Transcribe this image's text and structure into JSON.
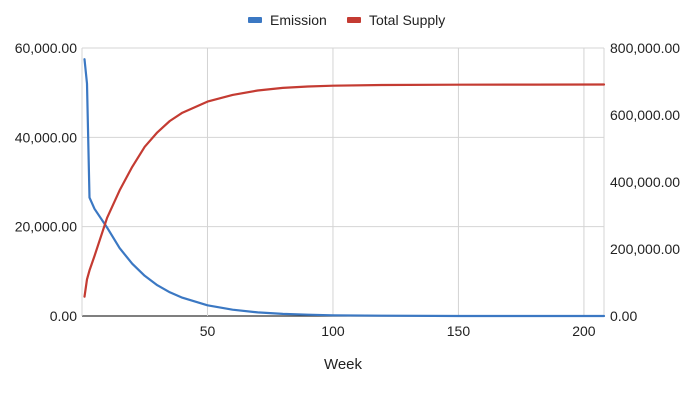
{
  "chart_data": {
    "type": "line",
    "title": "",
    "xlabel": "Week",
    "ylabel": "",
    "legend_position": "top-center",
    "x_range": [
      0,
      208
    ],
    "x_ticks": [
      50,
      100,
      150,
      200
    ],
    "x_tick_labels": [
      "50",
      "100",
      "150",
      "200"
    ],
    "y_left_range": [
      0,
      60000
    ],
    "y_left_ticks": [
      0,
      20000,
      40000,
      60000
    ],
    "y_left_tick_labels": [
      "0.00",
      "20,000.00",
      "40,000.00",
      "60,000.00"
    ],
    "y_right_range": [
      0,
      800000
    ],
    "y_right_ticks": [
      0,
      200000,
      400000,
      600000,
      800000
    ],
    "y_right_tick_labels": [
      "0.00",
      "200,000.00",
      "400,000.00",
      "600,000.00",
      "800,000.00"
    ],
    "grid": true,
    "series": [
      {
        "name": "Emission",
        "axis": "left",
        "color": "#3b78c3",
        "x": [
          1,
          2,
          3,
          5,
          10,
          15,
          20,
          25,
          30,
          35,
          40,
          50,
          60,
          70,
          80,
          90,
          100,
          120,
          150,
          180,
          208
        ],
        "values": [
          57500,
          52000,
          26500,
          24000,
          19800,
          15200,
          11700,
          9000,
          6900,
          5300,
          4100,
          2400,
          1400,
          800,
          470,
          280,
          160,
          60,
          10,
          2,
          0
        ]
      },
      {
        "name": "Total Supply",
        "axis": "right",
        "color": "#c43b32",
        "x": [
          1,
          2,
          3,
          5,
          10,
          15,
          20,
          25,
          30,
          35,
          40,
          50,
          60,
          70,
          80,
          90,
          100,
          120,
          150,
          180,
          208
        ],
        "values": [
          57500,
          109500,
          136000,
          179000,
          293000,
          375000,
          445000,
          505000,
          548000,
          582000,
          607000,
          640000,
          660000,
          673000,
          681000,
          685000,
          687500,
          689500,
          690500,
          690800,
          691000
        ]
      }
    ]
  }
}
